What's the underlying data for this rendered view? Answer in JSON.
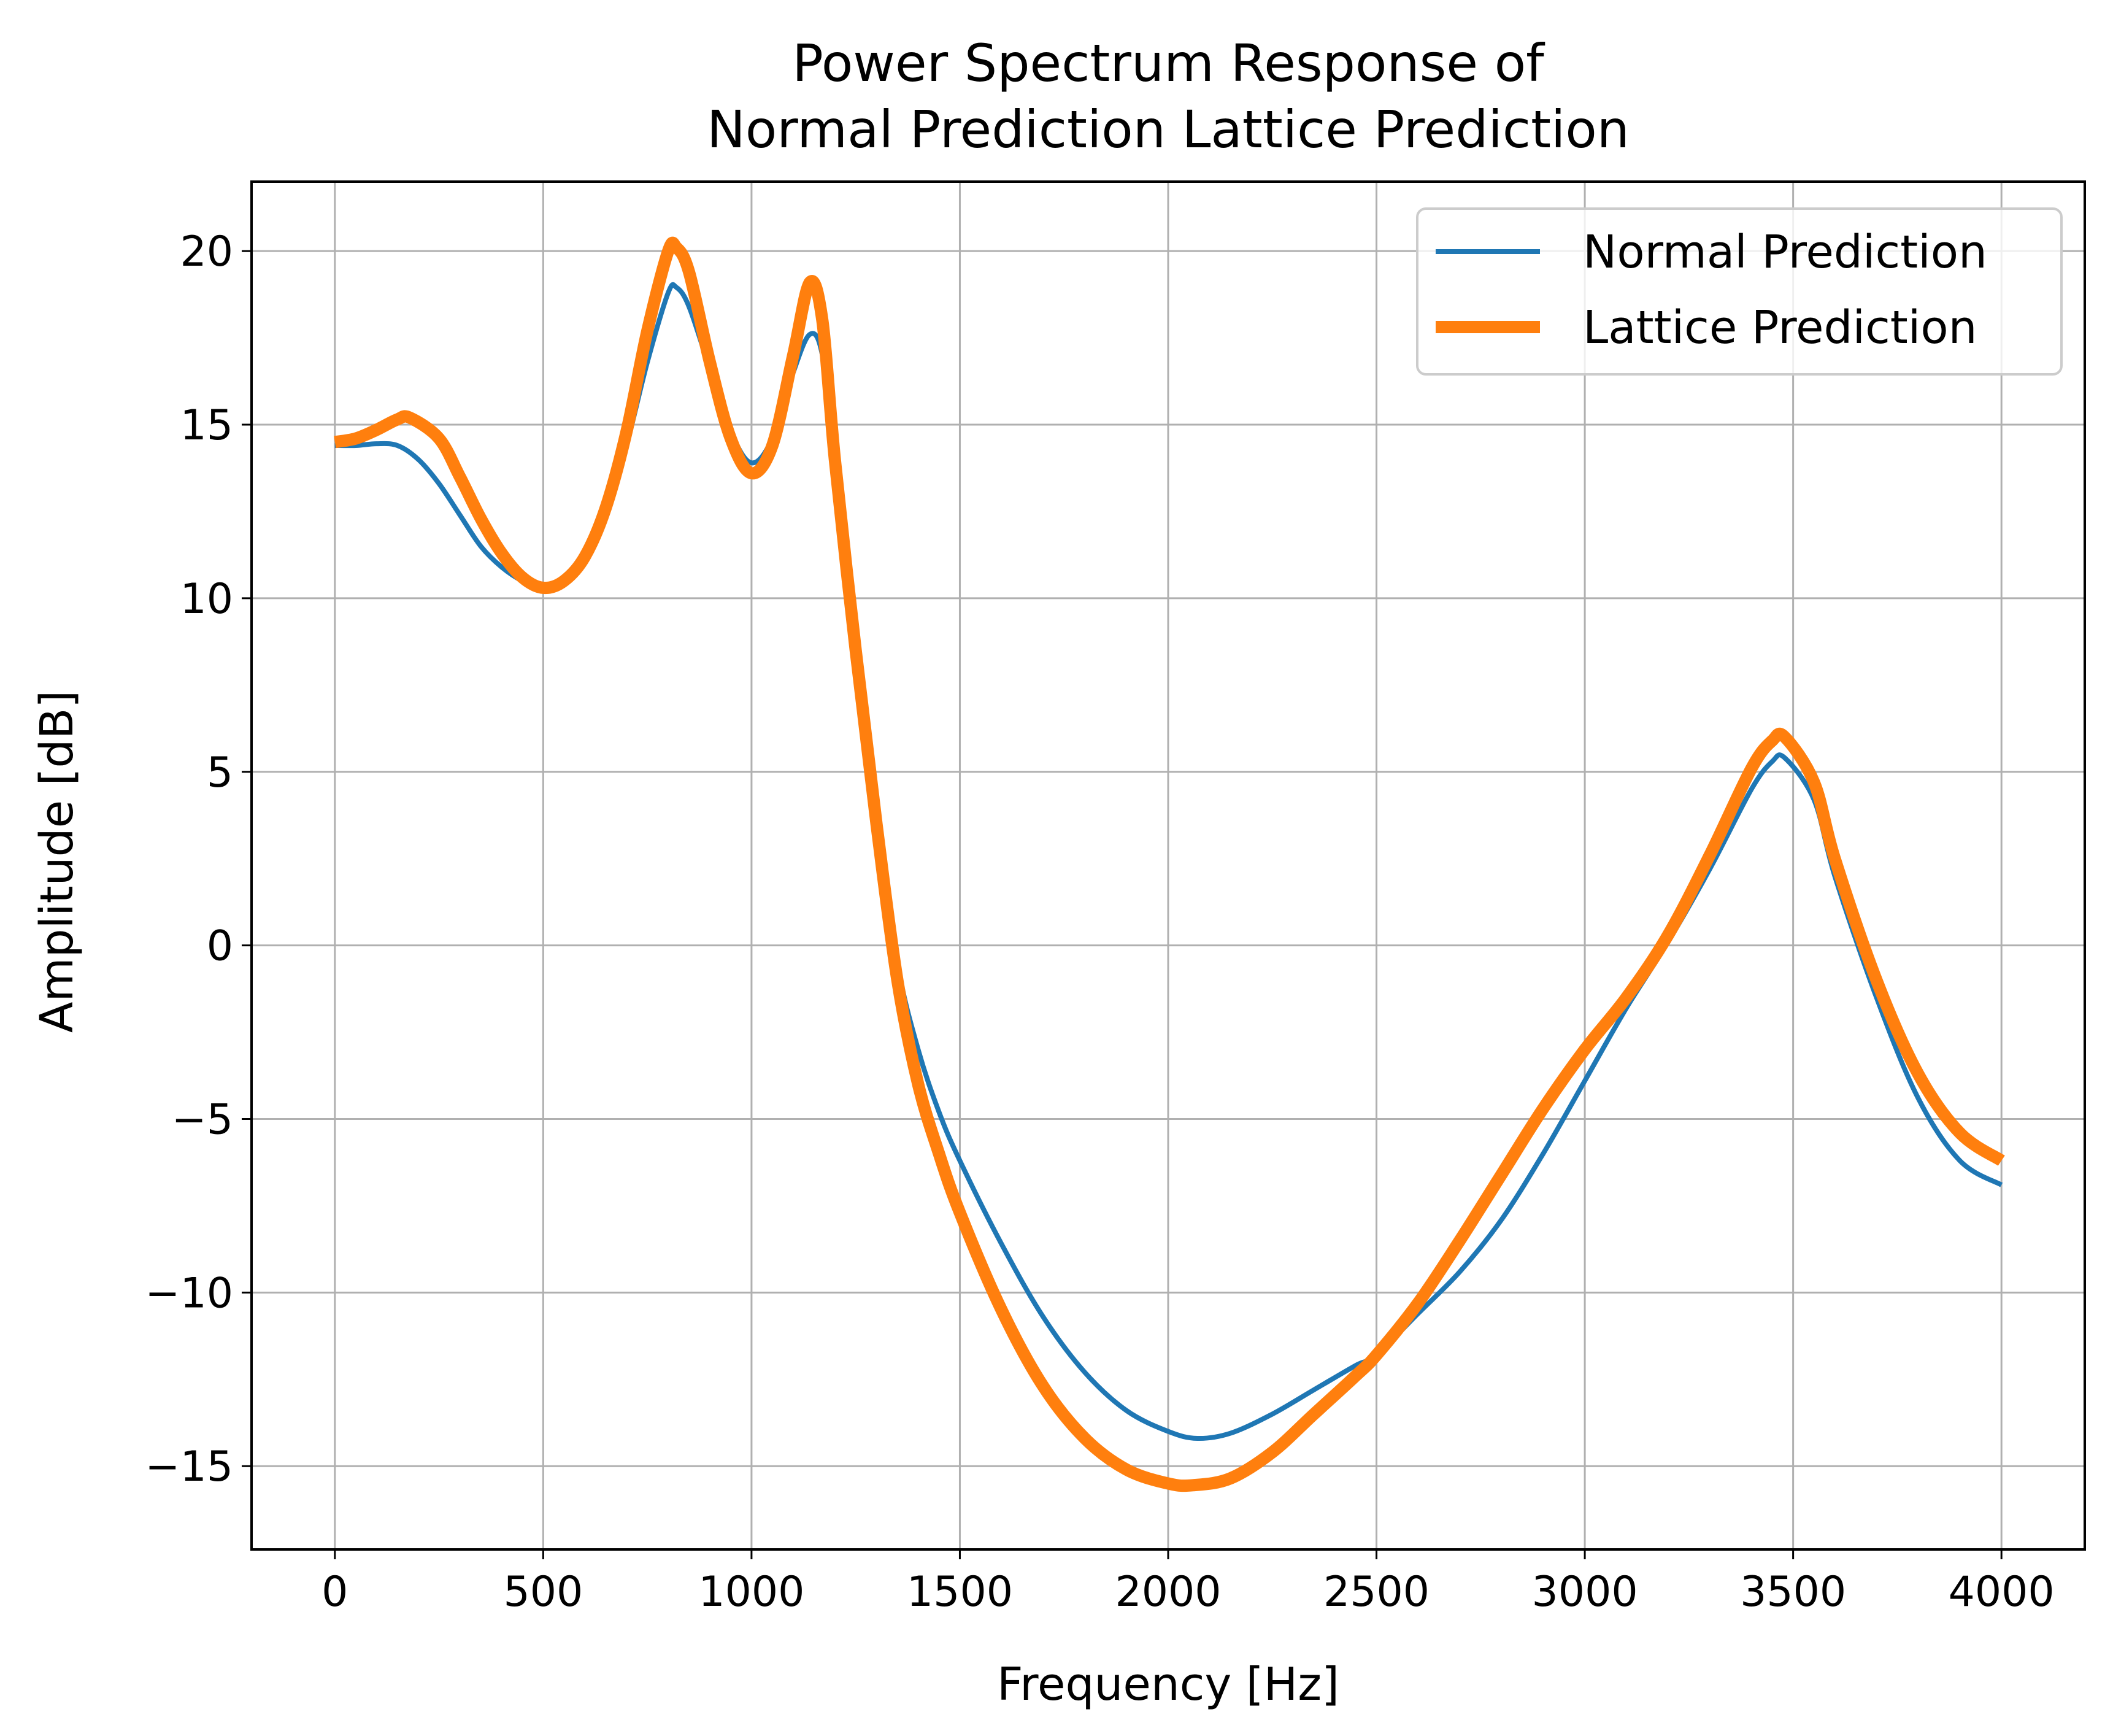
{
  "chart_data": {
    "type": "line",
    "title_lines": [
      "Power Spectrum Response of",
      "Normal Prediction Lattice Prediction"
    ],
    "xlabel": "Frequency [Hz]",
    "ylabel": "Amplitude [dB]",
    "xlim": [
      -200,
      4200
    ],
    "ylim": [
      -17.4,
      22
    ],
    "xticks": [
      0,
      500,
      1000,
      1500,
      2000,
      2500,
      3000,
      3500,
      4000
    ],
    "xtick_labels": [
      "0",
      "500",
      "1000",
      "1500",
      "2000",
      "2500",
      "3000",
      "3500",
      "4000"
    ],
    "yticks": [
      -15,
      -10,
      -5,
      0,
      5,
      10,
      15,
      20
    ],
    "ytick_labels": [
      "−15",
      "−10",
      "−5",
      "0",
      "5",
      "10",
      "15",
      "20"
    ],
    "grid": true,
    "legend_position": "top-right",
    "series": [
      {
        "name": "Normal Prediction",
        "color": "#1f77b4",
        "line": "thin",
        "points": [
          [
            0,
            14.4
          ],
          [
            50,
            14.4
          ],
          [
            100,
            14.45
          ],
          [
            150,
            14.4
          ],
          [
            200,
            14.0
          ],
          [
            250,
            13.3
          ],
          [
            300,
            12.4
          ],
          [
            350,
            11.5
          ],
          [
            400,
            10.9
          ],
          [
            450,
            10.5
          ],
          [
            500,
            10.3
          ],
          [
            550,
            10.5
          ],
          [
            600,
            11.1
          ],
          [
            650,
            12.4
          ],
          [
            700,
            14.4
          ],
          [
            750,
            16.8
          ],
          [
            800,
            18.8
          ],
          [
            820,
            18.95
          ],
          [
            850,
            18.4
          ],
          [
            900,
            16.6
          ],
          [
            950,
            14.8
          ],
          [
            1000,
            13.9
          ],
          [
            1050,
            14.6
          ],
          [
            1100,
            16.5
          ],
          [
            1140,
            17.6
          ],
          [
            1170,
            17.0
          ],
          [
            1200,
            14.0
          ],
          [
            1250,
            8.5
          ],
          [
            1300,
            3.8
          ],
          [
            1350,
            -0.5
          ],
          [
            1400,
            -3.0
          ],
          [
            1450,
            -4.8
          ],
          [
            1500,
            -6.2
          ],
          [
            1600,
            -8.6
          ],
          [
            1700,
            -10.7
          ],
          [
            1800,
            -12.3
          ],
          [
            1900,
            -13.4
          ],
          [
            2000,
            -14.0
          ],
          [
            2070,
            -14.2
          ],
          [
            2150,
            -14.05
          ],
          [
            2250,
            -13.5
          ],
          [
            2350,
            -12.8
          ],
          [
            2450,
            -12.1
          ],
          [
            2500,
            -11.8
          ],
          [
            2600,
            -10.6
          ],
          [
            2700,
            -9.4
          ],
          [
            2800,
            -7.9
          ],
          [
            2900,
            -6.0
          ],
          [
            3000,
            -3.9
          ],
          [
            3100,
            -1.8
          ],
          [
            3200,
            0.1
          ],
          [
            3300,
            2.2
          ],
          [
            3400,
            4.5
          ],
          [
            3450,
            5.3
          ],
          [
            3480,
            5.4
          ],
          [
            3550,
            4.2
          ],
          [
            3600,
            2.0
          ],
          [
            3700,
            -1.5
          ],
          [
            3800,
            -4.4
          ],
          [
            3900,
            -6.2
          ],
          [
            4000,
            -6.9
          ]
        ]
      },
      {
        "name": "Lattice Prediction",
        "color": "#ff7f0e",
        "line": "thick",
        "points": [
          [
            0,
            14.5
          ],
          [
            50,
            14.6
          ],
          [
            100,
            14.85
          ],
          [
            150,
            15.15
          ],
          [
            180,
            15.2
          ],
          [
            250,
            14.6
          ],
          [
            300,
            13.5
          ],
          [
            350,
            12.3
          ],
          [
            400,
            11.3
          ],
          [
            450,
            10.6
          ],
          [
            500,
            10.3
          ],
          [
            550,
            10.5
          ],
          [
            600,
            11.2
          ],
          [
            650,
            12.6
          ],
          [
            700,
            14.8
          ],
          [
            750,
            17.7
          ],
          [
            800,
            20.0
          ],
          [
            820,
            20.1
          ],
          [
            850,
            19.4
          ],
          [
            900,
            16.8
          ],
          [
            950,
            14.6
          ],
          [
            1000,
            13.6
          ],
          [
            1050,
            14.4
          ],
          [
            1100,
            17.0
          ],
          [
            1140,
            19.1
          ],
          [
            1170,
            18.0
          ],
          [
            1200,
            14.0
          ],
          [
            1250,
            8.5
          ],
          [
            1300,
            3.5
          ],
          [
            1350,
            -1.0
          ],
          [
            1400,
            -4.0
          ],
          [
            1450,
            -6.0
          ],
          [
            1500,
            -7.7
          ],
          [
            1600,
            -10.5
          ],
          [
            1700,
            -12.7
          ],
          [
            1800,
            -14.2
          ],
          [
            1900,
            -15.1
          ],
          [
            2000,
            -15.5
          ],
          [
            2060,
            -15.55
          ],
          [
            2150,
            -15.35
          ],
          [
            2250,
            -14.6
          ],
          [
            2350,
            -13.5
          ],
          [
            2450,
            -12.4
          ],
          [
            2500,
            -11.8
          ],
          [
            2600,
            -10.3
          ],
          [
            2700,
            -8.5
          ],
          [
            2800,
            -6.6
          ],
          [
            2900,
            -4.7
          ],
          [
            3000,
            -3.0
          ],
          [
            3100,
            -1.5
          ],
          [
            3200,
            0.3
          ],
          [
            3300,
            2.6
          ],
          [
            3400,
            5.1
          ],
          [
            3450,
            5.9
          ],
          [
            3480,
            6.0
          ],
          [
            3550,
            4.7
          ],
          [
            3600,
            2.5
          ],
          [
            3700,
            -1.0
          ],
          [
            3800,
            -3.7
          ],
          [
            3900,
            -5.4
          ],
          [
            4000,
            -6.2
          ]
        ]
      }
    ]
  }
}
